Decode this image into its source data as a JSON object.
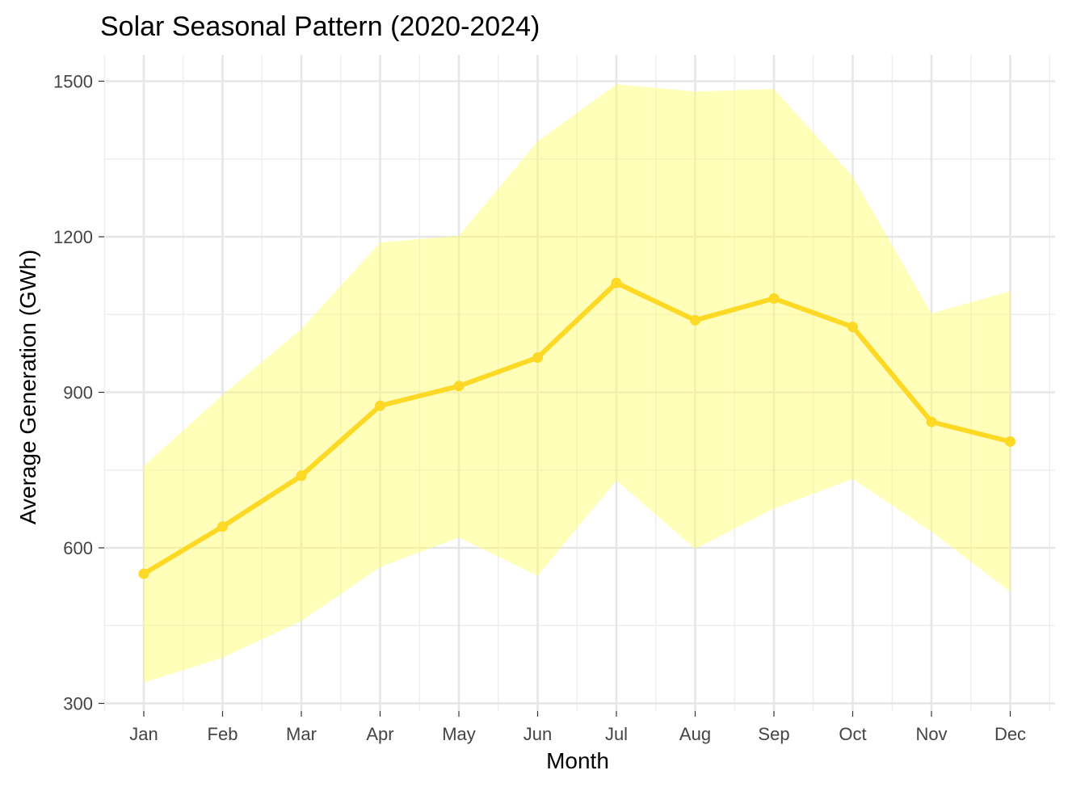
{
  "chart_data": {
    "type": "line",
    "title": "Solar Seasonal Pattern (2020-2024)",
    "xlabel": "Month",
    "ylabel": "Average Generation (GWh)",
    "categories": [
      "Jan",
      "Feb",
      "Mar",
      "Apr",
      "May",
      "Jun",
      "Jul",
      "Aug",
      "Sep",
      "Oct",
      "Nov",
      "Dec"
    ],
    "series": [
      {
        "values": [
          550,
          641,
          739,
          874,
          912,
          967,
          1111,
          1039,
          1081,
          1026,
          843,
          805
        ]
      }
    ],
    "band": {
      "lower": [
        340,
        388,
        459,
        563,
        620,
        546,
        730,
        598,
        676,
        733,
        631,
        515
      ],
      "upper": [
        758,
        895,
        1022,
        1189,
        1202,
        1384,
        1494,
        1480,
        1485,
        1316,
        1052,
        1095
      ]
    },
    "yticks": [
      300,
      600,
      900,
      1200,
      1500
    ],
    "ylim": [
      288,
      1550
    ],
    "grid": true,
    "legend": "none",
    "colors": {
      "line": "#FDD825",
      "band": "#FFFF66",
      "band_opacity": 0.45
    }
  }
}
